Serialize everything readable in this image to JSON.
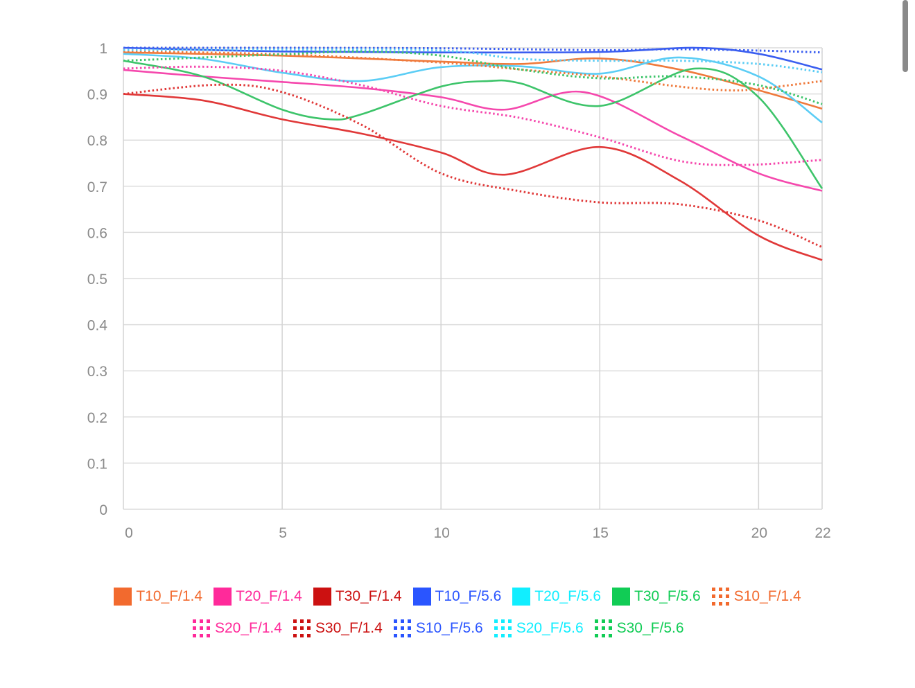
{
  "chart_data": {
    "type": "line",
    "title": "",
    "xlabel": "",
    "ylabel": "",
    "xlim": [
      0,
      22
    ],
    "ylim": [
      0,
      1
    ],
    "grid": true,
    "x_ticks": [
      "0",
      "5",
      "10",
      "15",
      "20",
      "22"
    ],
    "x_tick_values": [
      0,
      5,
      10,
      15,
      20,
      22
    ],
    "y_ticks": [
      "0",
      "0.1",
      "0.2",
      "0.3",
      "0.4",
      "0.5",
      "0.6",
      "0.7",
      "0.8",
      "0.9",
      "1"
    ],
    "y_tick_values": [
      0,
      0.1,
      0.2,
      0.3,
      0.4,
      0.5,
      0.6,
      0.7,
      0.8,
      0.9,
      1
    ],
    "legend_position": "bottom",
    "series": [
      {
        "name": "T10_F/1.4",
        "color": "#f26a2e",
        "line": "#ef7a3c",
        "dashed": false,
        "x": [
          0,
          5,
          10,
          12.5,
          15,
          17.5,
          20,
          22
        ],
        "y": [
          0.99,
          0.983,
          0.97,
          0.965,
          0.977,
          0.953,
          0.908,
          0.868
        ]
      },
      {
        "name": "T20_F/1.4",
        "color": "#ff2a9a",
        "line": "#f548ad",
        "dashed": false,
        "x": [
          0,
          2.5,
          5,
          7.5,
          10,
          12,
          14.5,
          17.5,
          20,
          22
        ],
        "y": [
          0.952,
          0.938,
          0.926,
          0.913,
          0.893,
          0.866,
          0.904,
          0.81,
          0.728,
          0.69
        ]
      },
      {
        "name": "T30_F/1.4",
        "color": "#cc1111",
        "line": "#e03838",
        "dashed": false,
        "x": [
          0,
          2.5,
          5,
          7.5,
          10,
          12,
          15,
          17.5,
          20,
          22
        ],
        "y": [
          0.9,
          0.886,
          0.845,
          0.814,
          0.773,
          0.725,
          0.785,
          0.713,
          0.593,
          0.54
        ]
      },
      {
        "name": "T10_F/5.6",
        "color": "#2a55ff",
        "line": "#3a5ef0",
        "dashed": false,
        "x": [
          0,
          5,
          10,
          15,
          18,
          20,
          22
        ],
        "y": [
          1.0,
          0.992,
          0.99,
          0.991,
          1.0,
          0.987,
          0.953
        ]
      },
      {
        "name": "T20_F/5.6",
        "color": "#11eeff",
        "line": "#5bcdf5",
        "dashed": false,
        "x": [
          0,
          2.5,
          5,
          7.5,
          10,
          12.5,
          15,
          17.5,
          20,
          22
        ],
        "y": [
          0.987,
          0.976,
          0.946,
          0.928,
          0.958,
          0.96,
          0.944,
          0.979,
          0.938,
          0.838
        ]
      },
      {
        "name": "T30_F/5.6",
        "color": "#11cc55",
        "line": "#3dc46a",
        "dashed": false,
        "x": [
          0,
          2.5,
          5,
          6.5,
          7.5,
          10,
          11.5,
          12.5,
          15,
          18,
          20,
          22
        ],
        "y": [
          0.972,
          0.938,
          0.866,
          0.845,
          0.856,
          0.916,
          0.928,
          0.923,
          0.874,
          0.955,
          0.893,
          0.695
        ]
      },
      {
        "name": "S10_F/1.4",
        "color": "#f26a2e",
        "line": "#ef7a3c",
        "dashed": true,
        "x": [
          0,
          5,
          10,
          12.5,
          15,
          17.5,
          19,
          20,
          22
        ],
        "y": [
          0.992,
          0.986,
          0.968,
          0.953,
          0.938,
          0.916,
          0.908,
          0.911,
          0.928
        ]
      },
      {
        "name": "S20_F/1.4",
        "color": "#ff2a9a",
        "line": "#f548ad",
        "dashed": true,
        "x": [
          0,
          2.5,
          5,
          7.5,
          10,
          12.5,
          15,
          17.5,
          19.5,
          22
        ],
        "y": [
          0.955,
          0.959,
          0.95,
          0.919,
          0.874,
          0.848,
          0.806,
          0.755,
          0.746,
          0.757
        ]
      },
      {
        "name": "S30_F/1.4",
        "color": "#cc1111",
        "line": "#e03838",
        "dashed": true,
        "x": [
          0,
          3,
          5,
          7.5,
          10,
          12.5,
          15,
          17.5,
          20,
          22
        ],
        "y": [
          0.9,
          0.92,
          0.904,
          0.833,
          0.728,
          0.689,
          0.665,
          0.661,
          0.626,
          0.568
        ]
      },
      {
        "name": "S10_F/5.6",
        "color": "#2a55ff",
        "line": "#3a5ef0",
        "dashed": true,
        "x": [
          0,
          5,
          10,
          15,
          17.5,
          20,
          22
        ],
        "y": [
          1.0,
          1.0,
          0.999,
          0.995,
          0.997,
          0.994,
          0.99
        ]
      },
      {
        "name": "S20_F/5.6",
        "color": "#11eeff",
        "line": "#5bcdf5",
        "dashed": true,
        "x": [
          0,
          5,
          10,
          12.5,
          15,
          17.5,
          20,
          22
        ],
        "y": [
          0.995,
          0.996,
          0.994,
          0.976,
          0.972,
          0.972,
          0.965,
          0.947
        ]
      },
      {
        "name": "S30_F/5.6",
        "color": "#11cc55",
        "line": "#3dc46a",
        "dashed": true,
        "x": [
          0,
          2.5,
          5,
          7.5,
          10,
          12.5,
          15,
          17.5,
          20,
          22
        ],
        "y": [
          0.972,
          0.979,
          0.986,
          0.992,
          0.983,
          0.953,
          0.934,
          0.938,
          0.919,
          0.878
        ]
      }
    ]
  }
}
